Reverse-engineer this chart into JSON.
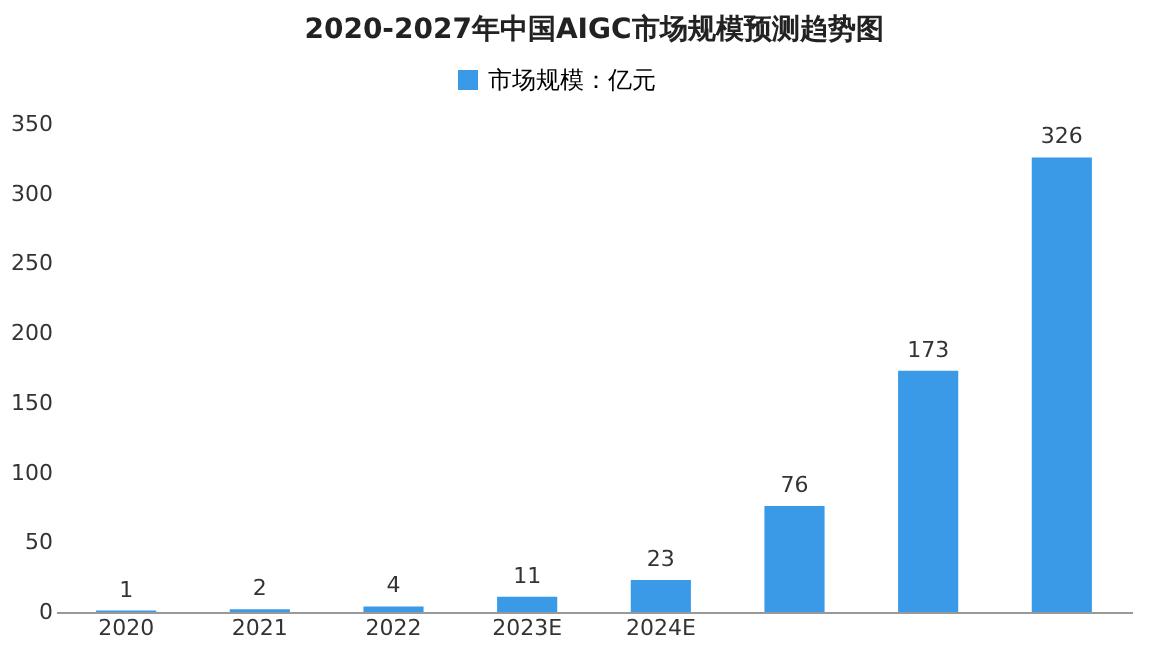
{
  "chart_data": {
    "type": "bar",
    "title": "2020-2027年中国AIGC市场规模预测趋势图",
    "categories": [
      "2020",
      "2021",
      "2022",
      "2023E",
      "2024E",
      null,
      null,
      null
    ],
    "series": [
      {
        "name": "市场规模：亿元",
        "color": "#3a9ae8",
        "values": [
          1,
          2,
          4,
          11,
          23,
          76,
          173,
          326
        ]
      }
    ],
    "ylim": [
      0,
      350
    ],
    "yticks": [
      0,
      50,
      100,
      150,
      200,
      250,
      300,
      350
    ],
    "data_labels": true,
    "legend": "top"
  }
}
